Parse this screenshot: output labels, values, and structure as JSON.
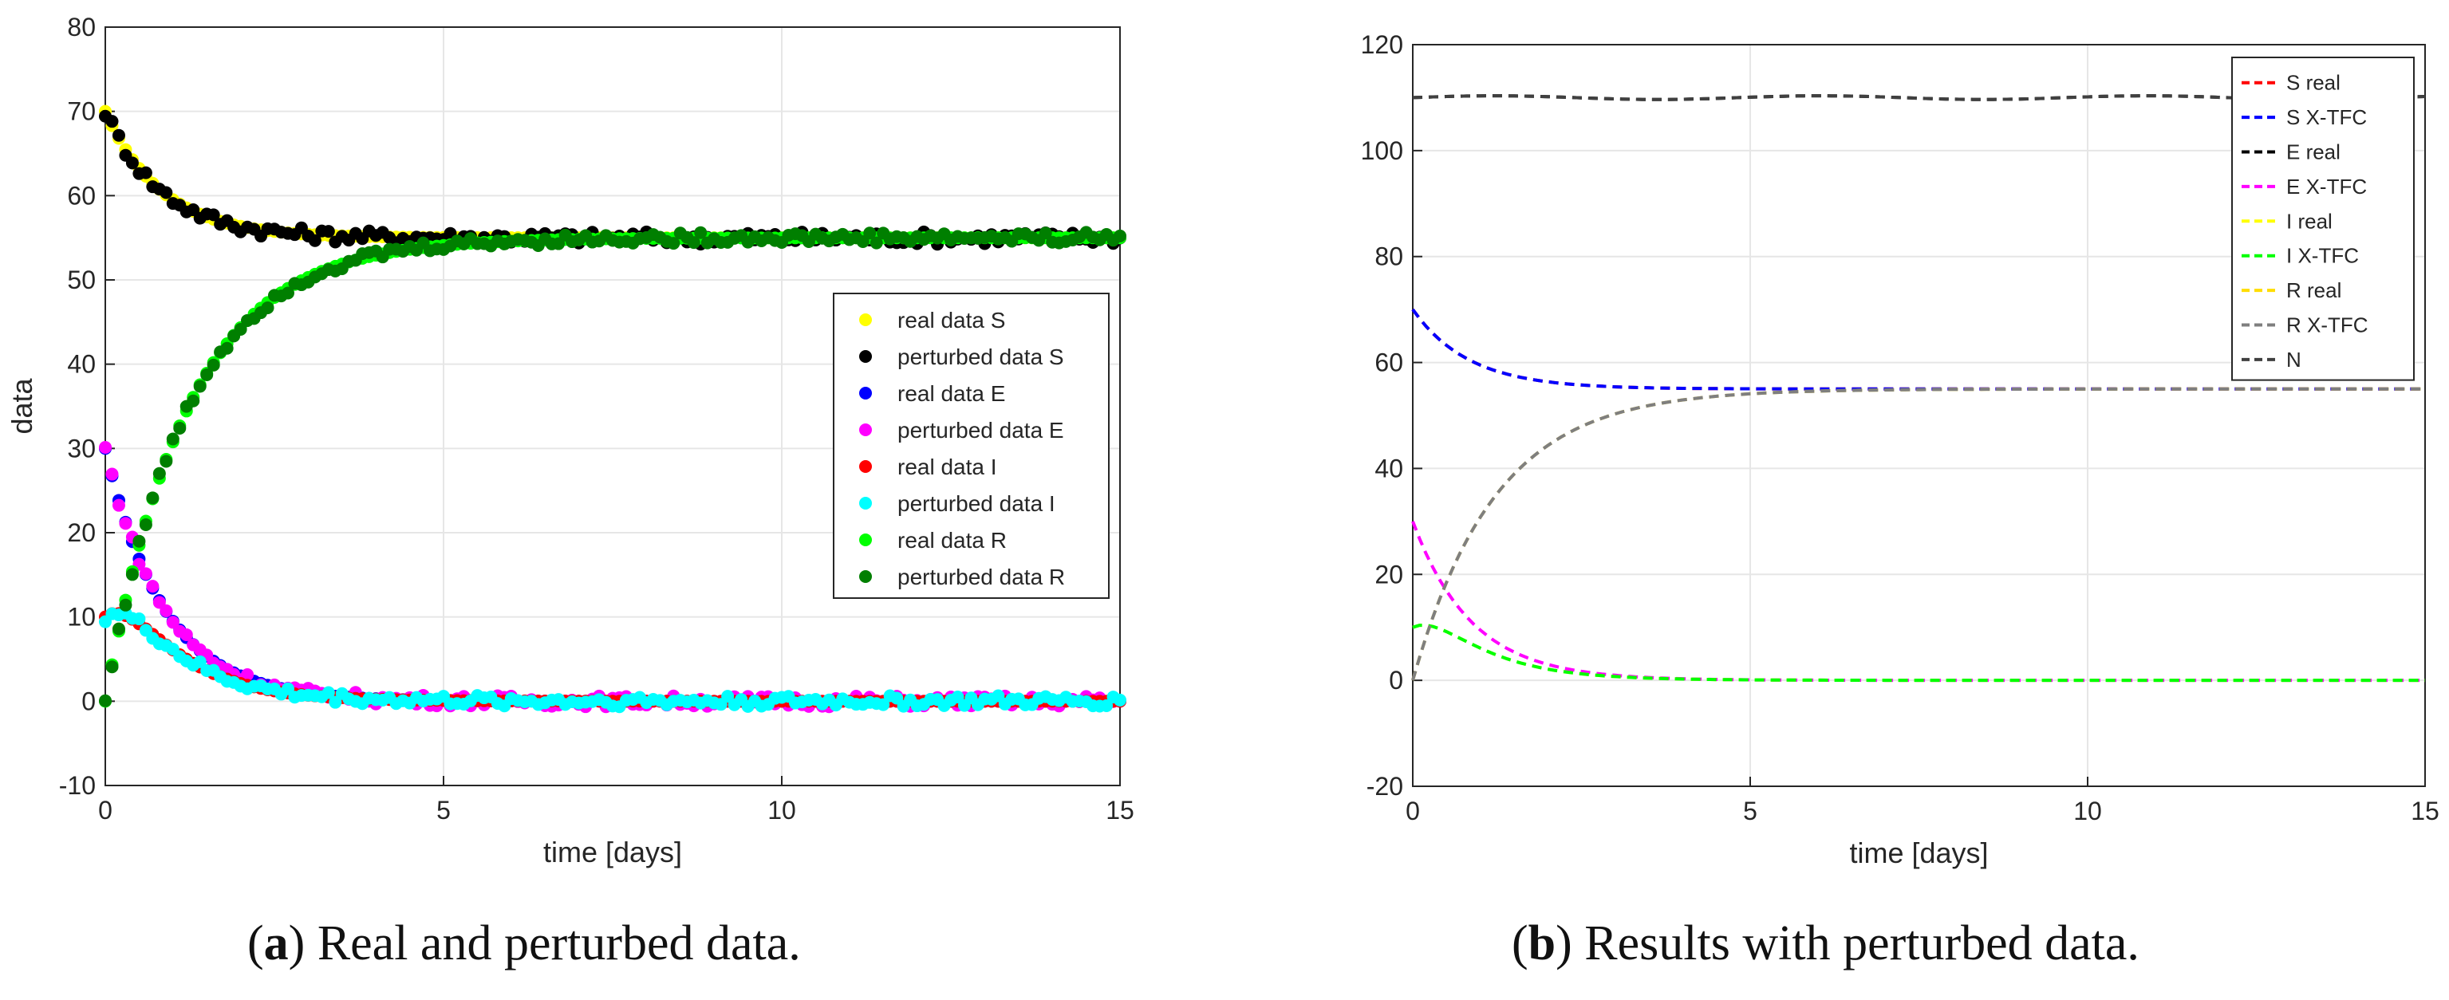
{
  "chart_data": [
    {
      "type": "scatter",
      "panel": "a",
      "title": "",
      "xlabel": "time [days]",
      "ylabel": "data",
      "xlim": [
        0,
        15
      ],
      "ylim": [
        -10,
        80
      ],
      "xticks": [
        0,
        5,
        10,
        15
      ],
      "yticks": [
        -10,
        0,
        10,
        20,
        30,
        40,
        50,
        60,
        70,
        80
      ],
      "xtick_labels": [
        "0",
        "5",
        "10",
        "15"
      ],
      "ytick_labels": [
        "-10",
        "0",
        "10",
        "20",
        "30",
        "40",
        "50",
        "60",
        "70",
        "80"
      ],
      "grid": true,
      "legend_position": "center-right",
      "series": [
        {
          "name": "real data S",
          "color": "#ffff00",
          "model": {
            "start": 70,
            "end": 55,
            "rate": 1.2
          },
          "noise": 0
        },
        {
          "name": "perturbed data S",
          "color": "#000000",
          "model": {
            "start": 70,
            "end": 55,
            "rate": 1.2
          },
          "noise": 0.7
        },
        {
          "name": "real data E",
          "color": "#0000ff",
          "model": {
            "start": 30,
            "end": 0,
            "rate": 1.15
          },
          "noise": 0
        },
        {
          "name": "perturbed data E",
          "color": "#ff00ff",
          "model": {
            "start": 30,
            "end": 0,
            "rate": 1.15
          },
          "noise": 0.6
        },
        {
          "name": "real data I",
          "color": "#ff0000",
          "model": {
            "start": 10,
            "end": 0,
            "rate": 0.95,
            "peak": 13.5,
            "peakAt": 0.6
          },
          "noise": 0
        },
        {
          "name": "perturbed data I",
          "color": "#00ffff",
          "model": {
            "start": 10,
            "end": 0,
            "rate": 0.95,
            "peak": 13.5,
            "peakAt": 0.6
          },
          "noise": 0.6
        },
        {
          "name": "real data R",
          "color": "#00ff00",
          "model": {
            "start": 0,
            "end": 55,
            "rate": 0.82
          },
          "noise": 0
        },
        {
          "name": "perturbed data R",
          "color": "#007f00",
          "model": {
            "start": 0,
            "end": 55,
            "rate": 0.82
          },
          "noise": 0.6
        }
      ]
    },
    {
      "type": "line",
      "panel": "b",
      "title": "",
      "xlabel": "time [days]",
      "ylabel": "",
      "xlim": [
        0,
        15
      ],
      "ylim": [
        -20,
        120
      ],
      "xticks": [
        0,
        5,
        10,
        15
      ],
      "yticks": [
        -20,
        0,
        20,
        40,
        60,
        80,
        100,
        120
      ],
      "xtick_labels": [
        "0",
        "5",
        "10",
        "15"
      ],
      "ytick_labels": [
        "-20",
        "0",
        "20",
        "40",
        "60",
        "80",
        "100",
        "120"
      ],
      "grid": true,
      "legend_position": "top-right",
      "series": [
        {
          "name": "S real",
          "color": "#ff0000",
          "model": {
            "start": 70,
            "end": 55,
            "rate": 1.2
          }
        },
        {
          "name": "S X-TFC",
          "color": "#0000ff",
          "model": {
            "start": 70,
            "end": 55,
            "rate": 1.2
          }
        },
        {
          "name": "E real",
          "color": "#000000",
          "model": {
            "constant": 110
          }
        },
        {
          "name": " E X-TFC",
          "color": "#ff00ff",
          "model": {
            "start": 30,
            "end": 0,
            "rate": 1.15
          }
        },
        {
          "name": "I real",
          "color": "#ffff00",
          "model": {
            "start": 10,
            "end": 0,
            "rate": 0.95,
            "peak": 13.5,
            "peakAt": 0.6
          }
        },
        {
          "name": "I X-TFC",
          "color": "#00ff00",
          "model": {
            "start": 10,
            "end": 0,
            "rate": 0.95,
            "peak": 13.5,
            "peakAt": 0.6
          }
        },
        {
          "name": "R real",
          "color": "#ffdd00",
          "model": {
            "start": 0,
            "end": 55,
            "rate": 0.82
          }
        },
        {
          "name": "R X-TFC",
          "color": "#7f7f7f",
          "model": {
            "start": 0,
            "end": 55,
            "rate": 0.82
          }
        },
        {
          "name": "N",
          "color": "#404040",
          "model": {
            "constant": 110
          }
        }
      ]
    }
  ],
  "captions": {
    "a": {
      "letter": "a",
      "text": "Real and perturbed data."
    },
    "b": {
      "letter": "b",
      "text": "Results with perturbed data."
    }
  }
}
